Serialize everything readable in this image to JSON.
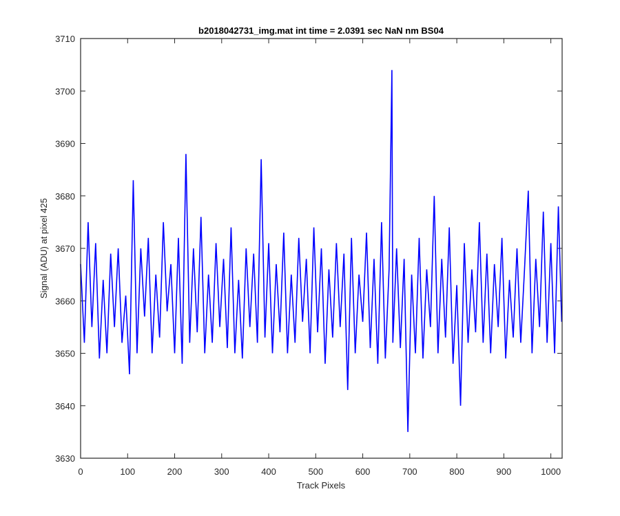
{
  "chart_data": {
    "type": "line",
    "title": "b2018042731_img.mat int time = 2.0391 sec  NaN nm BS04",
    "xlabel": "Track Pixels",
    "ylabel": "Signal (ADU) at pixel 425",
    "xlim": [
      0,
      1024
    ],
    "ylim": [
      3630,
      3710
    ],
    "xticks": [
      0,
      100,
      200,
      300,
      400,
      500,
      600,
      700,
      800,
      900,
      1000
    ],
    "yticks": [
      3630,
      3640,
      3650,
      3660,
      3670,
      3680,
      3690,
      3700,
      3710
    ],
    "grid": false,
    "series": [
      {
        "color": "#0000ff",
        "x": [
          0,
          8,
          16,
          24,
          32,
          40,
          48,
          56,
          64,
          72,
          80,
          88,
          96,
          104,
          112,
          120,
          128,
          136,
          144,
          152,
          160,
          168,
          176,
          184,
          192,
          200,
          208,
          216,
          224,
          232,
          240,
          248,
          256,
          264,
          272,
          280,
          288,
          296,
          304,
          312,
          320,
          328,
          336,
          344,
          352,
          360,
          368,
          376,
          384,
          392,
          400,
          408,
          416,
          424,
          432,
          440,
          448,
          456,
          464,
          472,
          480,
          488,
          496,
          504,
          512,
          520,
          528,
          536,
          544,
          552,
          560,
          568,
          576,
          584,
          592,
          600,
          608,
          616,
          624,
          632,
          640,
          648,
          656,
          662,
          664,
          672,
          680,
          688,
          696,
          704,
          712,
          720,
          728,
          736,
          744,
          752,
          760,
          768,
          776,
          784,
          792,
          800,
          808,
          816,
          824,
          832,
          840,
          848,
          856,
          864,
          872,
          880,
          888,
          896,
          904,
          912,
          920,
          928,
          936,
          944,
          952,
          960,
          968,
          976,
          984,
          992,
          1000,
          1008,
          1016,
          1023
        ],
        "y": [
          3667,
          3652,
          3675,
          3655,
          3671,
          3649,
          3664,
          3650,
          3669,
          3655,
          3670,
          3652,
          3661,
          3646,
          3683,
          3650,
          3670,
          3657,
          3672,
          3650,
          3665,
          3653,
          3675,
          3658,
          3667,
          3650,
          3672,
          3648,
          3688,
          3652,
          3670,
          3654,
          3676,
          3650,
          3665,
          3652,
          3671,
          3655,
          3668,
          3651,
          3674,
          3650,
          3664,
          3649,
          3670,
          3655,
          3669,
          3652,
          3687,
          3653,
          3671,
          3650,
          3667,
          3654,
          3673,
          3650,
          3665,
          3652,
          3672,
          3656,
          3668,
          3650,
          3674,
          3654,
          3670,
          3648,
          3666,
          3653,
          3671,
          3655,
          3669,
          3643,
          3672,
          3650,
          3665,
          3656,
          3673,
          3651,
          3668,
          3648,
          3675,
          3649,
          3666,
          3704,
          3652,
          3670,
          3651,
          3668,
          3635,
          3665,
          3650,
          3672,
          3649,
          3666,
          3655,
          3680,
          3650,
          3668,
          3653,
          3674,
          3648,
          3663,
          3640,
          3671,
          3652,
          3666,
          3654,
          3675,
          3652,
          3669,
          3650,
          3667,
          3655,
          3672,
          3649,
          3664,
          3653,
          3670,
          3652,
          3666,
          3681,
          3650,
          3668,
          3655,
          3677,
          3652,
          3671,
          3650,
          3678,
          3656
        ]
      }
    ]
  }
}
